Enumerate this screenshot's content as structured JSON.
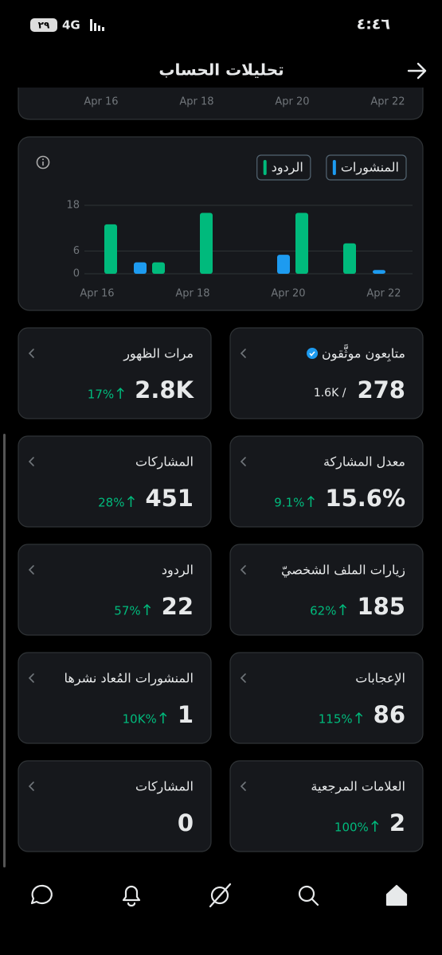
{
  "status_bar": {
    "time": "٤:٤٦",
    "network": "4G",
    "battery": "٢٩"
  },
  "header": {
    "title": "تحليلات الحساب"
  },
  "previous_chart": {
    "x_labels": [
      "Apr 16",
      "Apr 18",
      "Apr 20",
      "Apr 22"
    ]
  },
  "chart_data": {
    "type": "bar",
    "categories": [
      "Apr 16",
      null,
      "Apr 18",
      null,
      "Apr 20",
      null,
      "Apr 22"
    ],
    "series": [
      {
        "name": "المنشورات",
        "color": "#1d9bf0",
        "values": [
          0,
          3,
          0,
          0,
          5,
          0,
          1
        ]
      },
      {
        "name": "الردود",
        "color": "#00ba7c",
        "values": [
          13,
          3,
          16,
          0,
          16,
          8,
          0
        ]
      }
    ],
    "ylim": [
      0,
      18
    ],
    "yticks": [
      0,
      6,
      18
    ],
    "grid": true
  },
  "cards": [
    {
      "title": "متابِعون موثَّقون",
      "value": "278",
      "total": "1.6K /",
      "verified": true
    },
    {
      "title": "مرات الظهور",
      "value": "2.8K",
      "change": "17%"
    },
    {
      "title": "معدل المشاركة",
      "value": "15.6%",
      "change": "9.1%"
    },
    {
      "title": "المشاركات",
      "value": "451",
      "change": "28%"
    },
    {
      "title": "زيارات الملف الشخصيّ",
      "value": "185",
      "change": "62%"
    },
    {
      "title": "الردود",
      "value": "22",
      "change": "57%"
    },
    {
      "title": "الإعجابات",
      "value": "86",
      "change": "115%"
    },
    {
      "title": "المنشورات المُعاد نشرها",
      "value": "1",
      "change": "10K%"
    },
    {
      "title": "العلامات المرجعية",
      "value": "2",
      "change": "100%"
    },
    {
      "title": "المشاركات",
      "value": "0"
    }
  ]
}
